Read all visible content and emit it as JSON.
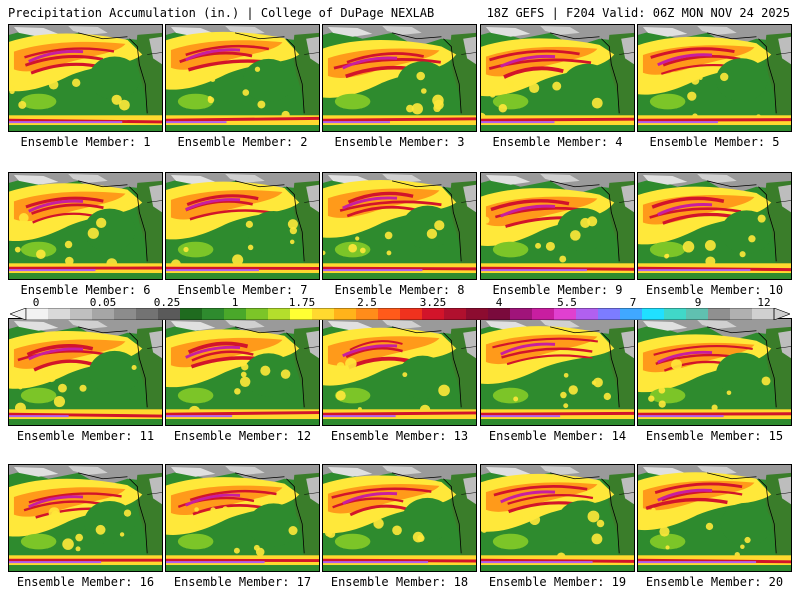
{
  "header": {
    "left_title": "Precipitation Accumulation (in.) | College of DuPage NEXLAB",
    "right_title": "18Z GEFS | F204 Valid: 06Z MON NOV 24 2025"
  },
  "panels": [
    {
      "label": "Ensemble Member: 1"
    },
    {
      "label": "Ensemble Member: 2"
    },
    {
      "label": "Ensemble Member: 3"
    },
    {
      "label": "Ensemble Member: 4"
    },
    {
      "label": "Ensemble Member: 5"
    },
    {
      "label": "Ensemble Member: 6"
    },
    {
      "label": "Ensemble Member: 7"
    },
    {
      "label": "Ensemble Member: 8"
    },
    {
      "label": "Ensemble Member: 9"
    },
    {
      "label": "Ensemble Member: 10"
    },
    {
      "label": "Ensemble Member: 11"
    },
    {
      "label": "Ensemble Member: 12"
    },
    {
      "label": "Ensemble Member: 13"
    },
    {
      "label": "Ensemble Member: 14"
    },
    {
      "label": "Ensemble Member: 15"
    },
    {
      "label": "Ensemble Member: 16"
    },
    {
      "label": "Ensemble Member: 17"
    },
    {
      "label": "Ensemble Member: 18"
    },
    {
      "label": "Ensemble Member: 19"
    },
    {
      "label": "Ensemble Member: 20"
    }
  ],
  "colorbar": {
    "tick_labels": [
      "0",
      "0.05",
      "0.25",
      "1",
      "1.75",
      "2.5",
      "3.25",
      "4",
      "5.5",
      "7",
      "9",
      "12"
    ],
    "colors": [
      "#f2f2f2",
      "#d9d9d9",
      "#bfbfbf",
      "#a6a6a6",
      "#8c8c8c",
      "#737373",
      "#5a5a5a",
      "#1f6b1f",
      "#2e8b2e",
      "#4aa82a",
      "#7cc528",
      "#b4de2c",
      "#ffff33",
      "#ffd92f",
      "#ffb31a",
      "#ff8c1a",
      "#ff5a1a",
      "#f0321e",
      "#d2142a",
      "#b0102e",
      "#8c0c30",
      "#7a0a3c",
      "#a0147a",
      "#c81ea0",
      "#e040d0",
      "#b060f0",
      "#7c7cff",
      "#40a8ff",
      "#20e0ff",
      "#40d8c8",
      "#60c0b0",
      "#909090",
      "#b0b0b0",
      "#d0d0d0"
    ]
  }
}
